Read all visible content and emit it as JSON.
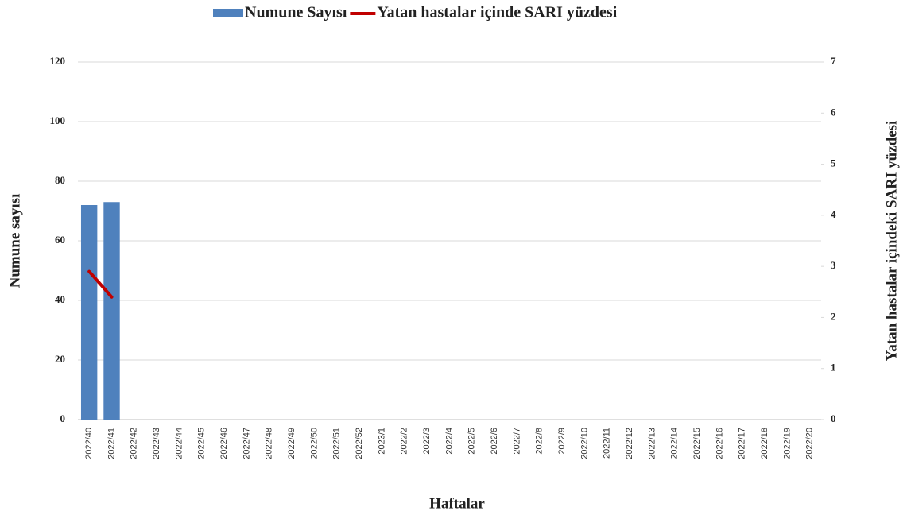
{
  "chart_data": {
    "type": "bar_line",
    "categories": [
      "2022/40",
      "2022/41",
      "2022/42",
      "2022/43",
      "2022/44",
      "2022/45",
      "2022/46",
      "2022/47",
      "2022/48",
      "2022/49",
      "2022/50",
      "2022/51",
      "2022/52",
      "2023/1",
      "2022/2",
      "2022/3",
      "2022/4",
      "2022/5",
      "2022/6",
      "2022/7",
      "2022/8",
      "2022/9",
      "2022/10",
      "2022/11",
      "2022/12",
      "2022/13",
      "2022/14",
      "2022/15",
      "2022/16",
      "2022/17",
      "2022/18",
      "2022/19",
      "2022/20"
    ],
    "series": [
      {
        "name": "Numune Sayısı",
        "type": "bar",
        "color": "#4f81bd",
        "values": [
          72,
          73,
          null,
          null,
          null,
          null,
          null,
          null,
          null,
          null,
          null,
          null,
          null,
          null,
          null,
          null,
          null,
          null,
          null,
          null,
          null,
          null,
          null,
          null,
          null,
          null,
          null,
          null,
          null,
          null,
          null,
          null,
          null
        ]
      },
      {
        "name": "Yatan hastalar içinde SARI yüzdesi",
        "type": "line",
        "color": "#c00000",
        "axis": "y2",
        "values": [
          2.9,
          2.4,
          null,
          null,
          null,
          null,
          null,
          null,
          null,
          null,
          null,
          null,
          null,
          null,
          null,
          null,
          null,
          null,
          null,
          null,
          null,
          null,
          null,
          null,
          null,
          null,
          null,
          null,
          null,
          null,
          null,
          null,
          null
        ]
      }
    ],
    "ylabel": "Numune sayısı",
    "y2label": "Yatan hastalar içindeki SARI yüzdesi",
    "xlabel": "Haftalar",
    "ylim": [
      0,
      120
    ],
    "yticks": [
      0,
      20,
      40,
      60,
      80,
      100,
      120
    ],
    "y2lim": [
      0,
      7
    ],
    "y2ticks": [
      0,
      1,
      2,
      3,
      4,
      5,
      6,
      7
    ],
    "grid": true,
    "legend": "top"
  }
}
